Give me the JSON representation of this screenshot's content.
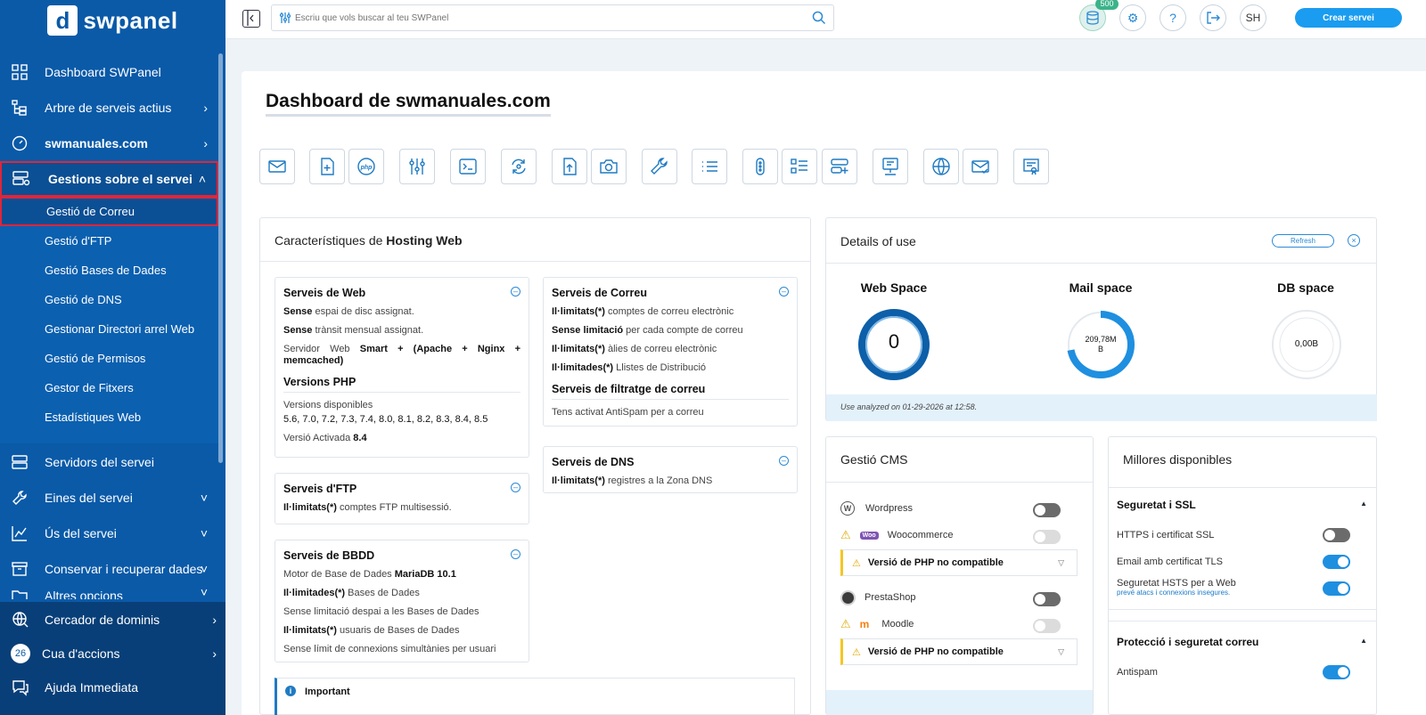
{
  "brand": {
    "name": "swpanel"
  },
  "sidebar": {
    "items": [
      {
        "label": "Dashboard SWPanel"
      },
      {
        "label": "Arbre de serveis actius"
      },
      {
        "label": "swmanuales.com"
      },
      {
        "label": "Gestions sobre el servei"
      },
      {
        "label": "Servidors del servei"
      },
      {
        "label": "Eines del servei"
      },
      {
        "label": "Ús del servei"
      },
      {
        "label": "Conservar i recuperar dades"
      },
      {
        "label": "Altres opcions"
      }
    ],
    "subitems": [
      {
        "label": "Gestió de Correu"
      },
      {
        "label": "Gestió d'FTP"
      },
      {
        "label": "Gestió Bases de Dades"
      },
      {
        "label": "Gestió de DNS"
      },
      {
        "label": "Gestionar Directori arrel Web"
      },
      {
        "label": "Gestió de Permisos"
      },
      {
        "label": "Gestor de Fitxers"
      },
      {
        "label": "Estadístiques Web"
      }
    ],
    "bottom": [
      {
        "label": "Cercador de dominis"
      },
      {
        "label": "Cua d'accions",
        "badge": "26"
      },
      {
        "label": "Ajuda Immediata"
      }
    ]
  },
  "topbar": {
    "search_placeholder": "Escriu que vols buscar al teu SWPanel",
    "db_count": "500",
    "avatar": "SH",
    "create_label": "Crear servei"
  },
  "main": {
    "title": "Dashboard de swmanuales.com"
  },
  "hosting": {
    "title_pre": "Característiques de ",
    "title_bold": "Hosting Web",
    "web": {
      "heading": "Serveis de Web",
      "l1b": "Sense",
      "l1": " espai de disc assignat.",
      "l2b": "Sense",
      "l2": " trànsit mensual assignat.",
      "l3": "Servidor Web ",
      "l3b": "Smart + (Apache + Nginx + memcached)",
      "php_heading": "Versions PHP",
      "php_avail": "Versions disponibles",
      "php_list": "5.6, 7.0, 7.2, 7.3, 7.4, 8.0, 8.1, 8.2, 8.3, 8.4, 8.5",
      "php_active": "Versió Activada ",
      "php_active_b": "8.4"
    },
    "ftp": {
      "heading": "Serveis d'FTP",
      "l1b": "Il·limitats(*)",
      "l1": " comptes FTP multisessió."
    },
    "bbdd": {
      "heading": "Serveis de BBDD",
      "l1": "Motor de Base de Dades ",
      "l1b": "MariaDB 10.1",
      "l2b": "Il·limitades(*)",
      "l2": " Bases de Dades",
      "l3": "Sense limitació despai a les Bases de Dades",
      "l4b": "Il·limitats(*)",
      "l4": " usuaris de Bases de Dades",
      "l5": "Sense límit de connexions simultànies per usuari"
    },
    "mail": {
      "heading": "Serveis de Correu",
      "l1b": "Il·limitats(*)",
      "l1": " comptes de correu electrònic",
      "l2b": "Sense limitació",
      "l2": " per cada compte de correu",
      "l3b": "Il·limitats(*)",
      "l3": " àlies de correu electrònic",
      "l4b": "Il·limitades(*)",
      "l4": " Llistes de Distribució",
      "filter_heading": "Serveis de filtratge de correu",
      "filter_l1": "Tens activat AntiSpam per a correu"
    },
    "dns": {
      "heading": "Serveis de DNS",
      "l1b": "Il·limitats(*)",
      "l1": " registres a la Zona DNS"
    },
    "important": "Important"
  },
  "details": {
    "title": "Details of use",
    "refresh": "Refresh",
    "web": {
      "label": "Web Space",
      "value": "0"
    },
    "mail": {
      "label": "Mail space",
      "value": "209,78M\nB",
      "fill": 0.72
    },
    "db": {
      "label": "DB space",
      "value": "0,00B"
    },
    "note": "Use analyzed on 01-29-2026 at 12:58."
  },
  "cms": {
    "title": "Gestió CMS",
    "rows": [
      {
        "label": "Wordpress"
      },
      {
        "label": "Woocommerce"
      },
      {
        "label": "PrestaShop"
      },
      {
        "label": "Moodle"
      }
    ],
    "warning": "Versió de PHP no compatible",
    "woo_badge": "Woo"
  },
  "upgrades": {
    "title": "Millores disponibles",
    "ssl_heading": "Seguretat i SSL",
    "ssl_rows": [
      {
        "label": "HTTPS i certificat SSL"
      },
      {
        "label": "Email amb certificat TLS"
      },
      {
        "label": "Seguretat HSTS per a Web",
        "sub": "prevé atacs i connexions insegures."
      }
    ],
    "mail_heading": "Protecció i seguretat correu",
    "mail_rows": [
      {
        "label": "Antispam"
      }
    ]
  },
  "colors": {
    "primary": "#0a5aa8",
    "accent": "#1f8fe0",
    "alert": "#e0253a"
  }
}
